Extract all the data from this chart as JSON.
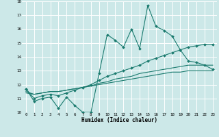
{
  "title": "",
  "xlabel": "Humidex (Indice chaleur)",
  "ylabel": "",
  "xlim": [
    -0.5,
    23.5
  ],
  "ylim": [
    10,
    18
  ],
  "yticks": [
    10,
    11,
    12,
    13,
    14,
    15,
    16,
    17,
    18
  ],
  "xticks": [
    0,
    1,
    2,
    3,
    4,
    5,
    6,
    7,
    8,
    9,
    10,
    11,
    12,
    13,
    14,
    15,
    16,
    17,
    18,
    19,
    20,
    21,
    22,
    23
  ],
  "bg_color": "#cce8e8",
  "grid_color": "#ffffff",
  "line_color": "#1a7a6e",
  "line1": [
    11.7,
    10.8,
    11.0,
    11.1,
    10.3,
    11.1,
    10.5,
    10.0,
    10.0,
    12.8,
    15.6,
    15.2,
    14.7,
    16.0,
    14.6,
    17.7,
    16.2,
    15.9,
    15.5,
    14.5,
    13.7,
    13.6,
    13.4,
    13.1
  ],
  "line2": [
    11.7,
    11.0,
    11.2,
    11.3,
    11.2,
    11.4,
    11.6,
    11.8,
    12.0,
    12.3,
    12.6,
    12.8,
    13.0,
    13.2,
    13.4,
    13.7,
    13.9,
    14.1,
    14.3,
    14.5,
    14.7,
    14.8,
    14.9,
    14.9
  ],
  "line3": [
    11.5,
    11.3,
    11.4,
    11.5,
    11.5,
    11.6,
    11.7,
    11.8,
    11.9,
    12.1,
    12.2,
    12.4,
    12.5,
    12.6,
    12.8,
    12.9,
    13.0,
    13.1,
    13.2,
    13.3,
    13.4,
    13.4,
    13.4,
    13.4
  ],
  "line4": [
    11.4,
    11.3,
    11.4,
    11.5,
    11.5,
    11.6,
    11.7,
    11.8,
    11.9,
    12.0,
    12.1,
    12.2,
    12.3,
    12.4,
    12.5,
    12.6,
    12.7,
    12.8,
    12.9,
    12.9,
    13.0,
    13.0,
    13.0,
    13.0
  ],
  "tick_fontsize": 4.2,
  "xlabel_fontsize": 5.5,
  "marker_size": 2.0,
  "line_width": 0.8
}
